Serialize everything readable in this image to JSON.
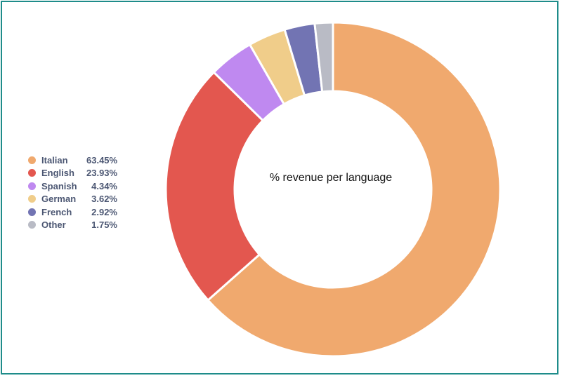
{
  "chart_data": {
    "type": "pie",
    "center_label": "% revenue per language",
    "legend_placement": "left",
    "slices": [
      {
        "name": "Italian",
        "value": 63.45,
        "label": "63.45%",
        "color": "#f0a96e"
      },
      {
        "name": "English",
        "value": 23.93,
        "label": "23.93%",
        "color": "#e3574f"
      },
      {
        "name": "Spanish",
        "value": 4.34,
        "label": "4.34%",
        "color": "#bf89f0"
      },
      {
        "name": "German",
        "value": 3.62,
        "label": "3.62%",
        "color": "#f0cd8a"
      },
      {
        "name": "French",
        "value": 2.92,
        "label": "2.92%",
        "color": "#7274b3"
      },
      {
        "name": "Other",
        "value": 1.75,
        "label": "1.75%",
        "color": "#b9bbc5"
      }
    ]
  },
  "colors": {
    "frame_border": "#1e8c8a",
    "legend_text": "#4c5773"
  }
}
